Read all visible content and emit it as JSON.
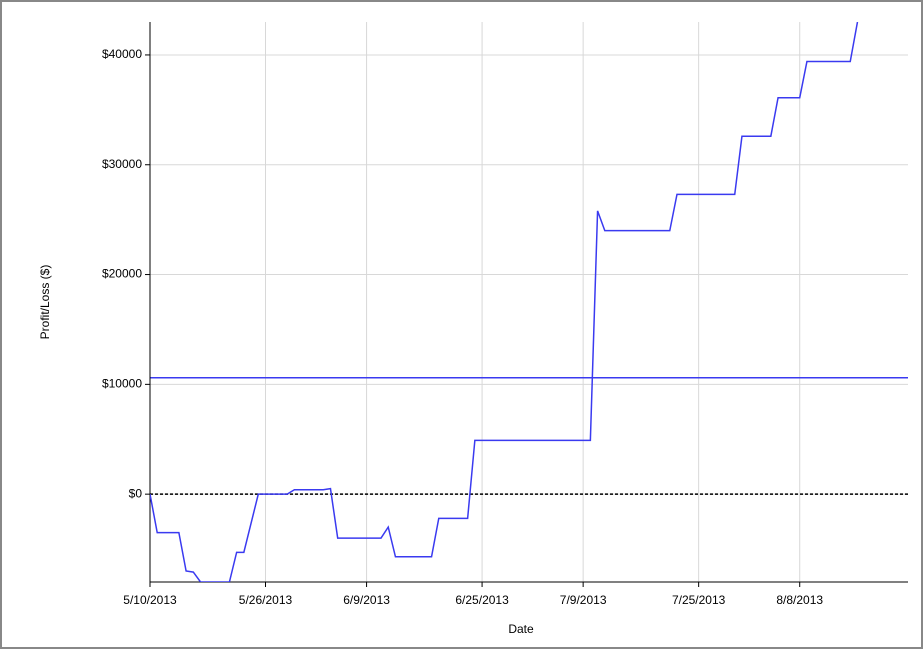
{
  "chart_data": {
    "type": "line",
    "xlabel": "Date",
    "ylabel": "Profit/Loss ($)",
    "x": [
      "5/10/2013",
      "5/11/2013",
      "5/14/2013",
      "5/15/2013",
      "5/16/2013",
      "5/17/2013",
      "5/21/2013",
      "5/22/2013",
      "5/23/2013",
      "5/25/2013",
      "5/29/2013",
      "5/30/2013",
      "6/3/2013",
      "6/4/2013",
      "6/5/2013",
      "6/11/2013",
      "6/12/2013",
      "6/13/2013",
      "6/18/2013",
      "6/19/2013",
      "6/23/2013",
      "6/24/2013",
      "7/10/2013",
      "7/11/2013",
      "7/12/2013",
      "7/21/2013",
      "7/22/2013",
      "7/30/2013",
      "7/31/2013",
      "8/4/2013",
      "8/5/2013",
      "8/8/2013",
      "8/9/2013",
      "8/15/2013",
      "8/16/2013"
    ],
    "series": [
      {
        "name": "Profit/Loss",
        "color": "#3a3af0",
        "values": [
          0,
          -3500,
          -3500,
          -7000,
          -7100,
          -8000,
          -8000,
          -5300,
          -5300,
          0,
          0,
          400,
          400,
          500,
          -4000,
          -4000,
          -3000,
          -5700,
          -5700,
          -2200,
          -2200,
          4900,
          4900,
          25800,
          24000,
          24000,
          27300,
          27300,
          32600,
          32600,
          36100,
          36100,
          39400,
          39400,
          43000
        ]
      }
    ],
    "hlines": [
      {
        "value": 10600,
        "color": "#3a3af0",
        "style": "solid"
      },
      {
        "value": 0,
        "color": "#000000",
        "style": "dashed"
      }
    ],
    "xlim": [
      "5/10/2013",
      "8/23/2013"
    ],
    "xticks": [
      "5/10/2013",
      "5/26/2013",
      "6/9/2013",
      "6/25/2013",
      "7/9/2013",
      "7/25/2013",
      "8/8/2013"
    ],
    "ylim": [
      -8000,
      43000
    ],
    "yticks": [
      {
        "value": 0,
        "label": "$0"
      },
      {
        "value": 10000,
        "label": "$10000"
      },
      {
        "value": 20000,
        "label": "$20000"
      },
      {
        "value": 30000,
        "label": "$30000"
      },
      {
        "value": 40000,
        "label": "$40000"
      }
    ],
    "grid": true
  }
}
